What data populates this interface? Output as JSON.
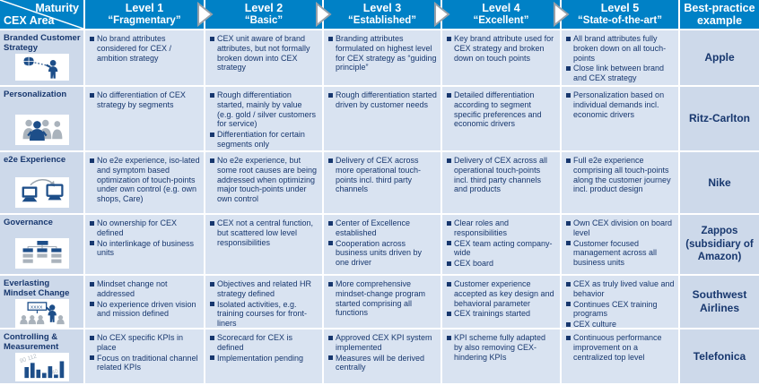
{
  "header": {
    "corner": {
      "top": "Maturity",
      "bottom": "CEX Area"
    },
    "levels": [
      {
        "line1": "Level 1",
        "line2": "“Fragmentary”"
      },
      {
        "line1": "Level 2",
        "line2": "“Basic”"
      },
      {
        "line1": "Level 3",
        "line2": "“Established”"
      },
      {
        "line1": "Level 4",
        "line2": "“Excellent”"
      },
      {
        "line1": "Level 5",
        "line2": "“State-of-the-art”"
      }
    ],
    "example": {
      "line1": "Best-practice",
      "line2": "example"
    }
  },
  "colors": {
    "header_blue": "#0081c6",
    "cell_background": "#d9e3f1",
    "area_background": "#cdd9ea",
    "text_navy": "#17376e"
  },
  "icons": [
    "brand-strategy-icon",
    "personalization-people-icon",
    "e2e-connected-computers-icon",
    "governance-org-chart-icon",
    "mindset-training-icon",
    "controlling-bar-chart-icon"
  ],
  "rows": [
    {
      "area": "Branded Customer Strategy",
      "levels": [
        [
          "No brand attributes considered for CEX / ambition  strategy"
        ],
        [
          "CEX unit aware of brand attributes, but not formally broken down into CEX strategy"
        ],
        [
          "Branding attributes formulated on highest level for CEX strategy as “guiding principle”"
        ],
        [
          "Key brand attribute used for CEX strategy and broken down on touch points"
        ],
        [
          "All brand attributes fully broken down on all touch-points",
          "Close link between brand and CEX strategy"
        ]
      ],
      "example": "Apple"
    },
    {
      "area": "Personalization",
      "levels": [
        [
          "No differentiation of CEX strategy by segments"
        ],
        [
          "Rough differentiation started, mainly by value (e.g. gold / silver customers for service)",
          "Differentiation for certain segments only"
        ],
        [
          "Rough differentiation started driven by customer needs"
        ],
        [
          "Detailed differentiation according to segment specific preferences and economic drivers"
        ],
        [
          "Personalization based on individual demands incl. economic drivers"
        ]
      ],
      "example": "Ritz-Carlton"
    },
    {
      "area": "e2e Experience",
      "levels": [
        [
          "No e2e experience, iso-lated and symptom based optimization of touch-points under own control (e.g. own shops, Care)"
        ],
        [
          "No e2e experience, but some root causes are being addressed when optimizing major touch-points under own control"
        ],
        [
          "Delivery of CEX across more operational  touch-points incl. third party channels"
        ],
        [
          "Delivery of CEX  across all operational touch-points incl. third party channels and products"
        ],
        [
          "Full e2e experience comprising all touch-points along the customer journey incl. product design"
        ]
      ],
      "example": "Nike"
    },
    {
      "area": "Governance",
      "levels": [
        [
          "No ownership for CEX defined",
          "No interlinkage of business units"
        ],
        [
          "CEX not a central function, but scattered low level responsibilities"
        ],
        [
          "Center of Excellence established",
          "Cooperation across business units driven by one driver"
        ],
        [
          "Clear roles and responsibilities",
          "CEX team acting company-wide",
          "CEX board"
        ],
        [
          "Own CEX division on board level",
          "Customer focused management across all business units"
        ]
      ],
      "example": "Zappos (subsidiary of Amazon)"
    },
    {
      "area": "Everlasting Mindset Change",
      "levels": [
        [
          "Mindset change not addressed",
          "No experience driven vision and mission defined"
        ],
        [
          "Objectives and related HR strategy defined",
          "Isolated activities, e.g. training courses for front-liners"
        ],
        [
          "More comprehensive mindset-change program started comprising all functions"
        ],
        [
          "Customer experience accepted as key design and behavioral parameter",
          "CEX trainings started"
        ],
        [
          "CEX as truly lived value and behavior",
          "Continues CEX training programs",
          "CEX culture"
        ]
      ],
      "example": "Southwest Airlines"
    },
    {
      "area": "Controlling & Measurement",
      "levels": [
        [
          "No CEX specific KPIs in place",
          "Focus on traditional channel related KPIs"
        ],
        [
          "Scorecard for CEX is defined",
          "Implementation pending"
        ],
        [
          "Approved CEX KPI system implemented",
          "Measures will be derived centrally"
        ],
        [
          "KPI scheme fully adapted by also removing CEX-hindering KPIs"
        ],
        [
          "Continuous performance improvement on a centralized top level"
        ]
      ],
      "example": "Telefonica"
    }
  ]
}
